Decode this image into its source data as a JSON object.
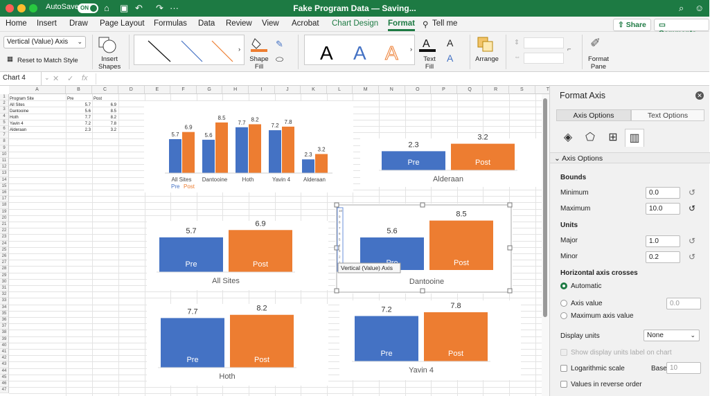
{
  "titlebar": {
    "autosave_label": "AutoSave",
    "autosave_state": "ON",
    "doc_title": "Fake Program Data — Saving...",
    "colors": {
      "bar": "#1d7a43",
      "close": "#ff5f57",
      "minimize": "#febc2e",
      "zoom": "#28c840"
    }
  },
  "menu": {
    "tabs": [
      "Home",
      "Insert",
      "Draw",
      "Page Layout",
      "Formulas",
      "Data",
      "Review",
      "View",
      "Acrobat",
      "Chart Design",
      "Format",
      "Tell me"
    ],
    "active_tab": "Format",
    "share_label": "Share",
    "comments_label": "Comments"
  },
  "ribbon": {
    "selection_value": "Vertical (Value) Axis",
    "reset_label": "Reset to Match Style",
    "insert_shapes_label": "Insert Shapes",
    "shape_fill_label": "Shape Fill",
    "text_fill_label": "Text Fill",
    "arrange_label": "Arrange",
    "format_pane_label": "Format Pane",
    "wordart_glyph": "A"
  },
  "formula_bar": {
    "name_box": "Chart 4",
    "fx": "fx"
  },
  "sheet": {
    "columns": [
      "A",
      "B",
      "C",
      "D",
      "E",
      "F",
      "G",
      "H",
      "I",
      "J",
      "K",
      "L",
      "M",
      "N",
      "O",
      "P",
      "Q",
      "R",
      "S",
      "T"
    ],
    "row_count": 47,
    "headers": [
      "Program Site",
      "Pre",
      "Post"
    ],
    "rows": [
      [
        "All Sites",
        "5.7",
        "6.9"
      ],
      [
        "Dantooine",
        "5.6",
        "8.5"
      ],
      [
        "Hoth",
        "7.7",
        "8.2"
      ],
      [
        "Yavin 4",
        "7.2",
        "7.8"
      ],
      [
        "Alderaan",
        "2.3",
        "3.2"
      ]
    ]
  },
  "chart_data": [
    {
      "type": "bar",
      "categories": [
        "All Sites",
        "Dantooine",
        "Hoth",
        "Yavin 4",
        "Alderaan"
      ],
      "series": [
        {
          "name": "Pre",
          "values": [
            5.7,
            5.6,
            7.7,
            7.2,
            2.3
          ],
          "color": "#4472c4"
        },
        {
          "name": "Post",
          "values": [
            6.9,
            8.5,
            8.2,
            7.8,
            3.2
          ],
          "color": "#ed7d31"
        }
      ],
      "ylim": [
        0,
        10
      ],
      "legend": "bottom-left"
    },
    {
      "type": "bar",
      "categories": [
        "Pre",
        "Post"
      ],
      "values": [
        2.3,
        3.2
      ],
      "xlabel": "Alderaan",
      "ylim": [
        0,
        10
      ]
    },
    {
      "type": "bar",
      "categories": [
        "Pre",
        "Post"
      ],
      "values": [
        5.7,
        6.9
      ],
      "xlabel": "All Sites",
      "ylim": [
        0,
        10
      ]
    },
    {
      "type": "bar",
      "categories": [
        "Pre",
        "Post"
      ],
      "values": [
        5.6,
        8.5
      ],
      "xlabel": "Dantooine",
      "ylim": [
        0,
        10
      ],
      "axis_ticks": [
        "10",
        "9",
        "8",
        "7",
        "6",
        "5",
        "4",
        "3",
        "2",
        "1",
        "0"
      ],
      "tooltip": "Vertical (Value) Axis"
    },
    {
      "type": "bar",
      "categories": [
        "Pre",
        "Post"
      ],
      "values": [
        7.7,
        8.2
      ],
      "xlabel": "Hoth",
      "ylim": [
        0,
        10
      ]
    },
    {
      "type": "bar",
      "categories": [
        "Pre",
        "Post"
      ],
      "values": [
        7.2,
        7.8
      ],
      "xlabel": "Yavin 4",
      "ylim": [
        0,
        10
      ]
    }
  ],
  "pane": {
    "title": "Format Axis",
    "tabs": [
      "Axis Options",
      "Text Options"
    ],
    "icons": [
      "fill-icon",
      "pentagon-icon",
      "size-icon",
      "bar-chart-icon"
    ],
    "section": "Axis Options",
    "bounds_label": "Bounds",
    "minimum_label": "Minimum",
    "minimum_value": "0.0",
    "maximum_label": "Maximum",
    "maximum_value": "10.0",
    "units_label": "Units",
    "major_label": "Major",
    "major_value": "1.0",
    "minor_label": "Minor",
    "minor_value": "0.2",
    "crosses_label": "Horizontal axis crosses",
    "automatic_label": "Automatic",
    "axis_value_label": "Axis value",
    "axis_value_placeholder": "0.0",
    "max_axis_label": "Maximum axis value",
    "display_units_label": "Display units",
    "display_units_value": "None",
    "show_units_label": "Show display units label on chart",
    "log_label": "Logarithmic scale",
    "base_label": "Base",
    "base_value": "10",
    "reverse_label": "Values in reverse order"
  }
}
